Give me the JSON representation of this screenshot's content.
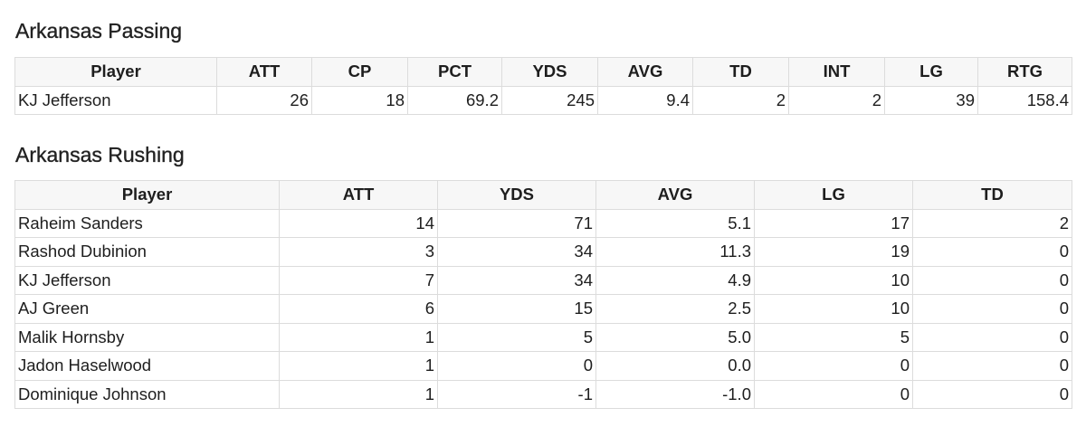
{
  "passing": {
    "title": "Arkansas Passing",
    "columns": [
      "Player",
      "ATT",
      "CP",
      "PCT",
      "YDS",
      "AVG",
      "TD",
      "INT",
      "LG",
      "RTG"
    ],
    "rows": [
      [
        "KJ Jefferson",
        "26",
        "18",
        "69.2",
        "245",
        "9.4",
        "2",
        "2",
        "39",
        "158.4"
      ]
    ]
  },
  "rushing": {
    "title": "Arkansas Rushing",
    "columns": [
      "Player",
      "ATT",
      "YDS",
      "AVG",
      "LG",
      "TD"
    ],
    "rows": [
      [
        "Raheim Sanders",
        "14",
        "71",
        "5.1",
        "17",
        "2"
      ],
      [
        "Rashod Dubinion",
        "3",
        "34",
        "11.3",
        "19",
        "0"
      ],
      [
        "KJ Jefferson",
        "7",
        "34",
        "4.9",
        "10",
        "0"
      ],
      [
        "AJ Green",
        "6",
        "15",
        "2.5",
        "10",
        "0"
      ],
      [
        "Malik Hornsby",
        "1",
        "5",
        "5.0",
        "5",
        "0"
      ],
      [
        "Jadon Haselwood",
        "1",
        "0",
        "0.0",
        "0",
        "0"
      ],
      [
        "Dominique Johnson",
        "1",
        "-1",
        "-1.0",
        "0",
        "0"
      ]
    ]
  }
}
